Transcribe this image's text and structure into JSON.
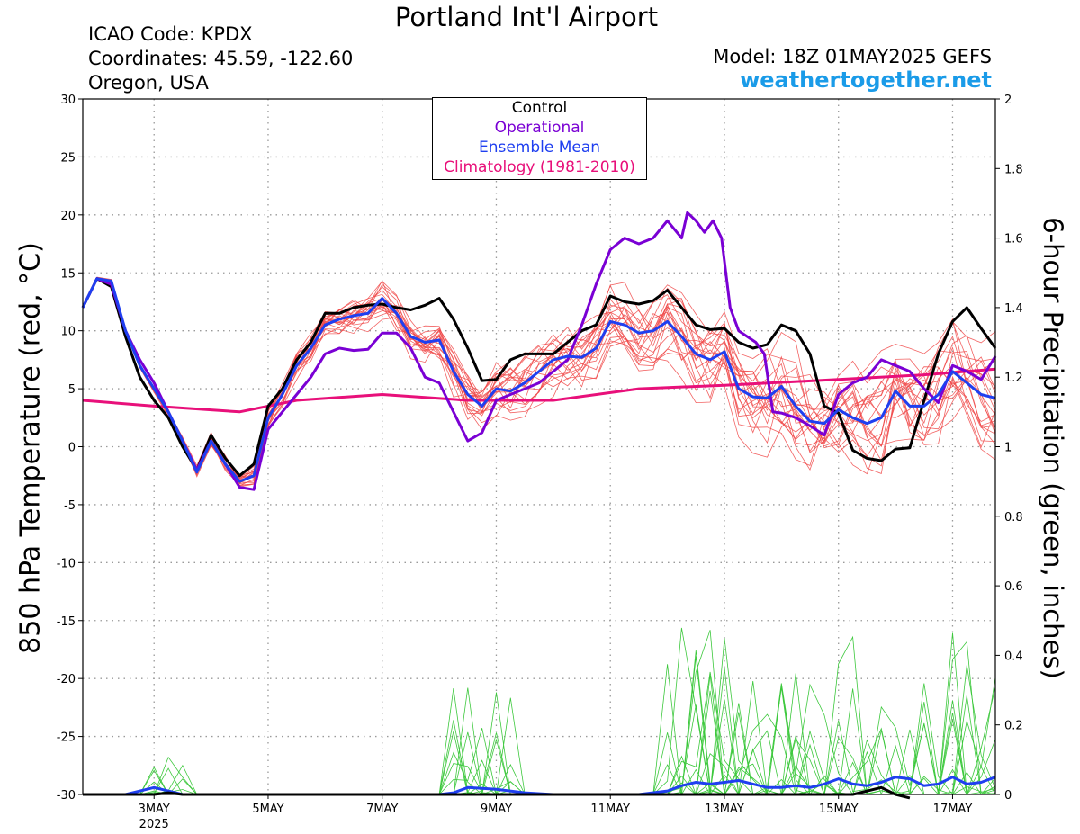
{
  "header": {
    "title": "Portland Int'l Airport",
    "icao": "ICAO Code: KPDX",
    "coordinates": "Coordinates: 45.59, -122.60",
    "region": "Oregon, USA",
    "model": "Model: 18Z 01MAY2025 GEFS",
    "site": "weathertogether.net"
  },
  "chart_data": {
    "type": "line",
    "ylabel": "850 hPa Temperature (red, °C)",
    "y2label": "6-hour Precipitation (green, inches)",
    "ylim": [
      -30,
      30
    ],
    "y2lim": [
      0,
      2
    ],
    "x_unit": "days since 01MAY 00Z",
    "xlim": [
      1.75,
      17.75
    ],
    "x_tick_labels": [
      {
        "x": 3,
        "label": "3MAY"
      },
      {
        "x": 5,
        "label": "5MAY"
      },
      {
        "x": 7,
        "label": "7MAY"
      },
      {
        "x": 9,
        "label": "9MAY"
      },
      {
        "x": 11,
        "label": "11MAY"
      },
      {
        "x": 13,
        "label": "13MAY"
      },
      {
        "x": 15,
        "label": "15MAY"
      },
      {
        "x": 17,
        "label": "17MAY"
      }
    ],
    "year_label": "2025",
    "y_ticks": [
      30,
      25,
      20,
      15,
      10,
      5,
      0,
      -5,
      -10,
      -15,
      -20,
      -25,
      -30
    ],
    "y2_ticks": [
      "2",
      "1.8",
      "1.6",
      "1.4",
      "1.2",
      "1",
      "0.8",
      "0.6",
      "0.4",
      "0.2",
      "0"
    ],
    "grid": true,
    "legend_position": "top-center",
    "legend": [
      {
        "label": "Control",
        "color": "#000000"
      },
      {
        "label": "Operational",
        "color": "#7a00d4"
      },
      {
        "label": "Ensemble Mean",
        "color": "#1f3ff0"
      },
      {
        "label": "Climatology (1981-2010)",
        "color": "#e8107a"
      }
    ],
    "series": [
      {
        "name": "Climatology (1981-2010)",
        "color": "#e8107a",
        "axis": "temp",
        "points": [
          [
            1.75,
            4.0
          ],
          [
            3.0,
            3.5
          ],
          [
            4.5,
            3.0
          ],
          [
            5.5,
            4.0
          ],
          [
            7.0,
            4.5
          ],
          [
            8.5,
            4.0
          ],
          [
            10.0,
            4.0
          ],
          [
            11.5,
            5.0
          ],
          [
            13.0,
            5.3
          ],
          [
            15.0,
            5.8
          ],
          [
            16.5,
            6.2
          ],
          [
            17.75,
            6.7
          ]
        ]
      },
      {
        "name": "Control",
        "color": "#000000",
        "axis": "temp",
        "points": [
          [
            1.75,
            12.0
          ],
          [
            2.0,
            14.5
          ],
          [
            2.25,
            13.8
          ],
          [
            2.5,
            9.5
          ],
          [
            2.75,
            6.0
          ],
          [
            3.0,
            4.0
          ],
          [
            3.25,
            2.5
          ],
          [
            3.5,
            0.0
          ],
          [
            3.75,
            -2.0
          ],
          [
            4.0,
            1.0
          ],
          [
            4.25,
            -1.0
          ],
          [
            4.5,
            -2.5
          ],
          [
            4.75,
            -1.5
          ],
          [
            5.0,
            3.5
          ],
          [
            5.25,
            5.0
          ],
          [
            5.5,
            7.5
          ],
          [
            5.75,
            9.0
          ],
          [
            6.0,
            11.5
          ],
          [
            6.25,
            11.5
          ],
          [
            6.5,
            12.0
          ],
          [
            6.75,
            12.2
          ],
          [
            7.0,
            12.3
          ],
          [
            7.25,
            12.0
          ],
          [
            7.5,
            11.8
          ],
          [
            7.75,
            12.2
          ],
          [
            8.0,
            12.8
          ],
          [
            8.25,
            11.0
          ],
          [
            8.5,
            8.5
          ],
          [
            8.75,
            5.7
          ],
          [
            9.0,
            5.8
          ],
          [
            9.25,
            7.5
          ],
          [
            9.5,
            8.0
          ],
          [
            9.75,
            8.0
          ],
          [
            10.0,
            8.0
          ],
          [
            10.25,
            9.0
          ],
          [
            10.5,
            10.0
          ],
          [
            10.75,
            10.5
          ],
          [
            11.0,
            13.0
          ],
          [
            11.25,
            12.5
          ],
          [
            11.5,
            12.3
          ],
          [
            11.75,
            12.6
          ],
          [
            12.0,
            13.5
          ],
          [
            12.25,
            12.0
          ],
          [
            12.5,
            10.5
          ],
          [
            12.75,
            10.1
          ],
          [
            13.0,
            10.2
          ],
          [
            13.25,
            9.0
          ],
          [
            13.5,
            8.5
          ],
          [
            13.75,
            8.8
          ],
          [
            14.0,
            10.5
          ],
          [
            14.25,
            10.0
          ],
          [
            14.5,
            8.0
          ],
          [
            14.75,
            3.5
          ],
          [
            15.0,
            2.9
          ],
          [
            15.25,
            -0.3
          ],
          [
            15.5,
            -1.0
          ],
          [
            15.75,
            -1.2
          ],
          [
            16.0,
            -0.2
          ],
          [
            16.25,
            -0.1
          ],
          [
            16.5,
            4.0
          ],
          [
            16.75,
            8.0
          ],
          [
            17.0,
            10.8
          ],
          [
            17.25,
            12.0
          ],
          [
            17.5,
            10.2
          ],
          [
            17.75,
            8.5
          ]
        ]
      },
      {
        "name": "Operational",
        "color": "#7a00d4",
        "axis": "temp",
        "points": [
          [
            1.75,
            12.0
          ],
          [
            2.0,
            14.5
          ],
          [
            2.25,
            14.0
          ],
          [
            2.5,
            10.0
          ],
          [
            2.75,
            7.5
          ],
          [
            3.0,
            5.5
          ],
          [
            3.25,
            3.0
          ],
          [
            3.5,
            0.5
          ],
          [
            3.75,
            -2.0
          ],
          [
            4.0,
            0.5
          ],
          [
            4.25,
            -1.5
          ],
          [
            4.5,
            -3.5
          ],
          [
            4.75,
            -3.7
          ],
          [
            5.0,
            1.5
          ],
          [
            5.25,
            3.0
          ],
          [
            5.5,
            4.5
          ],
          [
            5.75,
            6.0
          ],
          [
            6.0,
            8.0
          ],
          [
            6.25,
            8.5
          ],
          [
            6.5,
            8.3
          ],
          [
            6.75,
            8.4
          ],
          [
            7.0,
            9.8
          ],
          [
            7.25,
            9.8
          ],
          [
            7.5,
            8.5
          ],
          [
            7.75,
            6.0
          ],
          [
            8.0,
            5.5
          ],
          [
            8.25,
            3.0
          ],
          [
            8.5,
            0.5
          ],
          [
            8.75,
            1.2
          ],
          [
            9.0,
            4.0
          ],
          [
            9.25,
            4.5
          ],
          [
            9.5,
            5.0
          ],
          [
            9.75,
            5.5
          ],
          [
            10.0,
            6.5
          ],
          [
            10.25,
            7.5
          ],
          [
            10.5,
            10.5
          ],
          [
            10.75,
            14.0
          ],
          [
            11.0,
            17.0
          ],
          [
            11.25,
            18.0
          ],
          [
            11.5,
            17.5
          ],
          [
            11.75,
            18.0
          ],
          [
            12.0,
            19.5
          ],
          [
            12.25,
            18.0
          ],
          [
            12.35,
            20.2
          ],
          [
            12.5,
            19.5
          ],
          [
            12.65,
            18.5
          ],
          [
            12.8,
            19.5
          ],
          [
            12.95,
            18.0
          ],
          [
            13.1,
            12.0
          ],
          [
            13.25,
            10.0
          ],
          [
            13.4,
            9.5
          ],
          [
            13.55,
            9.0
          ],
          [
            13.7,
            8.0
          ],
          [
            13.85,
            3.0
          ],
          [
            14.0,
            2.9
          ],
          [
            14.25,
            2.5
          ],
          [
            14.5,
            1.8
          ],
          [
            14.75,
            1.0
          ],
          [
            15.0,
            4.5
          ],
          [
            15.25,
            5.5
          ],
          [
            15.5,
            6.0
          ],
          [
            15.75,
            7.5
          ],
          [
            16.0,
            7.0
          ],
          [
            16.25,
            6.5
          ],
          [
            16.5,
            5.0
          ],
          [
            16.75,
            3.8
          ],
          [
            17.0,
            7.0
          ],
          [
            17.25,
            6.5
          ],
          [
            17.5,
            5.8
          ],
          [
            17.75,
            7.8
          ]
        ]
      },
      {
        "name": "Ensemble Mean",
        "color": "#1f3ff0",
        "axis": "temp",
        "points": [
          [
            1.75,
            12.0
          ],
          [
            2.0,
            14.5
          ],
          [
            2.25,
            14.3
          ],
          [
            2.5,
            10.0
          ],
          [
            2.75,
            7.0
          ],
          [
            3.0,
            5.0
          ],
          [
            3.25,
            3.0
          ],
          [
            3.5,
            0.5
          ],
          [
            3.75,
            -2.2
          ],
          [
            4.0,
            0.5
          ],
          [
            4.25,
            -1.5
          ],
          [
            4.5,
            -3.0
          ],
          [
            4.75,
            -2.5
          ],
          [
            5.0,
            2.5
          ],
          [
            5.25,
            4.5
          ],
          [
            5.5,
            7.0
          ],
          [
            5.75,
            8.5
          ],
          [
            6.0,
            10.5
          ],
          [
            6.25,
            11.0
          ],
          [
            6.5,
            11.3
          ],
          [
            6.75,
            11.5
          ],
          [
            7.0,
            12.8
          ],
          [
            7.25,
            11.5
          ],
          [
            7.5,
            9.5
          ],
          [
            7.75,
            9.0
          ],
          [
            8.0,
            9.2
          ],
          [
            8.25,
            6.5
          ],
          [
            8.5,
            4.5
          ],
          [
            8.75,
            3.5
          ],
          [
            9.0,
            5.0
          ],
          [
            9.25,
            4.8
          ],
          [
            9.5,
            5.5
          ],
          [
            9.75,
            6.5
          ],
          [
            10.0,
            7.5
          ],
          [
            10.25,
            7.8
          ],
          [
            10.5,
            7.7
          ],
          [
            10.75,
            8.5
          ],
          [
            11.0,
            10.8
          ],
          [
            11.25,
            10.5
          ],
          [
            11.5,
            9.8
          ],
          [
            11.75,
            10.0
          ],
          [
            12.0,
            10.8
          ],
          [
            12.25,
            9.5
          ],
          [
            12.5,
            8.0
          ],
          [
            12.75,
            7.5
          ],
          [
            13.0,
            8.2
          ],
          [
            13.25,
            5.0
          ],
          [
            13.5,
            4.3
          ],
          [
            13.75,
            4.2
          ],
          [
            14.0,
            5.2
          ],
          [
            14.25,
            3.5
          ],
          [
            14.5,
            2.2
          ],
          [
            14.75,
            2.0
          ],
          [
            15.0,
            3.2
          ],
          [
            15.25,
            2.5
          ],
          [
            15.5,
            2.0
          ],
          [
            15.75,
            2.5
          ],
          [
            16.0,
            4.8
          ],
          [
            16.25,
            3.5
          ],
          [
            16.5,
            3.5
          ],
          [
            16.75,
            4.5
          ],
          [
            17.0,
            6.5
          ],
          [
            17.25,
            5.5
          ],
          [
            17.5,
            4.5
          ],
          [
            17.75,
            4.2
          ]
        ]
      },
      {
        "name": "Ensemble Mean precipitation",
        "color": "#1f3ff0",
        "axis": "precip",
        "points": [
          [
            1.75,
            0.0
          ],
          [
            2.5,
            0.0
          ],
          [
            3.0,
            0.02
          ],
          [
            3.25,
            0.01
          ],
          [
            3.5,
            0.0
          ],
          [
            4.0,
            0.0
          ],
          [
            4.5,
            0.0
          ],
          [
            5.0,
            0.0
          ],
          [
            6.0,
            0.0
          ],
          [
            7.0,
            0.0
          ],
          [
            8.0,
            0.0
          ],
          [
            8.25,
            0.005
          ],
          [
            8.5,
            0.02
          ],
          [
            9.0,
            0.015
          ],
          [
            9.5,
            0.005
          ],
          [
            10.0,
            0.0
          ],
          [
            11.0,
            0.0
          ],
          [
            11.5,
            0.0
          ],
          [
            12.0,
            0.01
          ],
          [
            12.25,
            0.025
          ],
          [
            12.5,
            0.035
          ],
          [
            12.75,
            0.03
          ],
          [
            13.0,
            0.035
          ],
          [
            13.25,
            0.04
          ],
          [
            13.5,
            0.03
          ],
          [
            13.75,
            0.02
          ],
          [
            14.0,
            0.02
          ],
          [
            14.25,
            0.025
          ],
          [
            14.5,
            0.02
          ],
          [
            14.75,
            0.03
          ],
          [
            15.0,
            0.045
          ],
          [
            15.25,
            0.03
          ],
          [
            15.5,
            0.025
          ],
          [
            15.75,
            0.035
          ],
          [
            16.0,
            0.05
          ],
          [
            16.25,
            0.045
          ],
          [
            16.5,
            0.025
          ],
          [
            16.75,
            0.03
          ],
          [
            17.0,
            0.05
          ],
          [
            17.25,
            0.03
          ],
          [
            17.5,
            0.035
          ],
          [
            17.75,
            0.05
          ]
        ]
      },
      {
        "name": "Control precipitation",
        "color": "#000000",
        "axis": "precip",
        "points": [
          [
            1.75,
            0.0
          ],
          [
            3.0,
            0.0
          ],
          [
            3.25,
            0.005
          ],
          [
            3.5,
            0.0
          ],
          [
            15.25,
            0.0
          ],
          [
            15.75,
            0.02
          ],
          [
            16.0,
            0.0
          ],
          [
            16.25,
            -0.01
          ]
        ]
      }
    ]
  }
}
